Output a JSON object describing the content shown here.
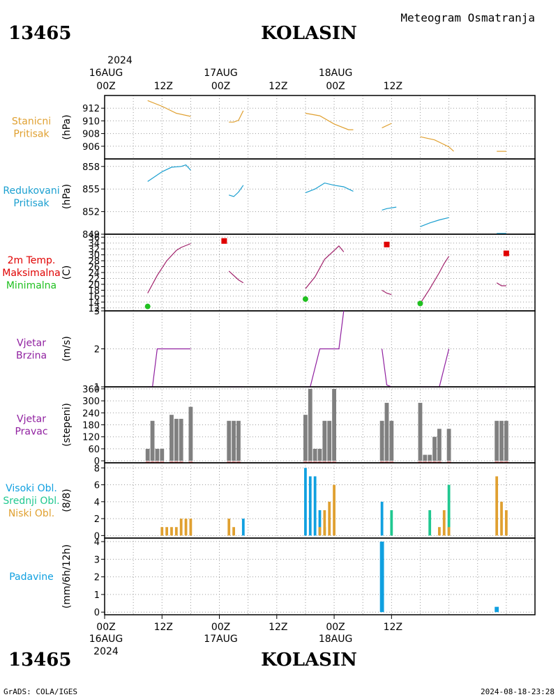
{
  "header": {
    "station_id": "13465",
    "station_name": "KOLASIN",
    "subtitle": "Meteogram Osmatranja"
  },
  "footer": {
    "station_id": "13465",
    "station_name": "KOLASIN",
    "credit": "GrADS: COLA/IGES",
    "timestamp": "2024-08-18-23:28"
  },
  "time_axis": {
    "year": "2024",
    "days": [
      "16AUG",
      "17AUG",
      "18AUG"
    ],
    "top_hour_labels": [
      "00Z",
      "12Z",
      "00Z",
      "12Z",
      "00Z",
      "12Z"
    ],
    "bottom_hour_labels": [
      "00Z",
      "12Z",
      "00Z",
      "12Z",
      "00Z",
      "12Z"
    ]
  },
  "colors": {
    "pressure": "#e0a030",
    "reduced": "#1a9fd0",
    "temp": "#a0206a",
    "max": "#e00000",
    "min": "#20c020",
    "wind": "#9020a0",
    "winddir": "#808080",
    "high_cloud": "#10a0e0",
    "mid_cloud": "#20c890",
    "low_cloud": "#e0a030",
    "precip": "#10a0e0"
  },
  "chart_data": [
    {
      "type": "line",
      "id": "stanicni",
      "labels": [
        "Stanicni",
        "Pritisak"
      ],
      "label_colors": [
        "#e0a030",
        "#e0a030"
      ],
      "unit": "(hPa)",
      "ylim": [
        904,
        914
      ],
      "ticks": [
        906,
        908,
        910,
        912
      ],
      "segments": [
        [
          [
            9,
            913.2
          ],
          [
            12,
            912.3
          ],
          [
            15,
            911.2
          ],
          [
            18,
            910.7
          ]
        ],
        [
          [
            26,
            909.8
          ],
          [
            27,
            909.8
          ],
          [
            28,
            910.1
          ],
          [
            29,
            911.6
          ]
        ],
        [
          [
            42,
            911.2
          ],
          [
            45,
            910.8
          ],
          [
            48,
            909.5
          ],
          [
            51,
            908.6
          ],
          [
            52,
            908.6
          ]
        ],
        [
          [
            58,
            908.9
          ],
          [
            60,
            909.6
          ]
        ],
        [
          [
            66,
            907.5
          ],
          [
            69,
            907
          ],
          [
            72,
            905.9
          ],
          [
            73,
            905.2
          ]
        ],
        [
          [
            82,
            905.2
          ],
          [
            84,
            905.2
          ]
        ]
      ]
    },
    {
      "type": "line",
      "id": "redukovani",
      "labels": [
        "Redukovani",
        "Pritisak"
      ],
      "label_colors": [
        "#1a9fd0",
        "#1a9fd0"
      ],
      "unit": "(hPa)",
      "ylim": [
        849,
        859
      ],
      "ticks": [
        849,
        852,
        855,
        858
      ],
      "segments": [
        [
          [
            9,
            856
          ],
          [
            12,
            857.3
          ],
          [
            14,
            857.9
          ],
          [
            16,
            858
          ],
          [
            17,
            858.2
          ],
          [
            18,
            857.5
          ]
        ],
        [
          [
            26,
            854.2
          ],
          [
            27,
            854
          ],
          [
            28,
            854.6
          ],
          [
            29,
            855.5
          ]
        ],
        [
          [
            42,
            854.5
          ],
          [
            44,
            855
          ],
          [
            46,
            855.8
          ],
          [
            48,
            855.5
          ],
          [
            50,
            855.3
          ],
          [
            52,
            854.7
          ]
        ],
        [
          [
            58,
            852.2
          ],
          [
            59,
            852.4
          ],
          [
            61,
            852.6
          ]
        ],
        [
          [
            66,
            850
          ],
          [
            68,
            850.5
          ],
          [
            70,
            850.9
          ],
          [
            72,
            851.2
          ]
        ],
        [
          [
            82,
            849.1
          ],
          [
            84,
            849.1
          ]
        ]
      ]
    },
    {
      "type": "line",
      "id": "temperatura",
      "labels": [
        "2m Temp.",
        "Maksimalna",
        "Minimalna"
      ],
      "label_colors": [
        "#e00000",
        "#e00000",
        "#20c020"
      ],
      "unit": "(C)",
      "ylim": [
        11,
        37
      ],
      "ticks": [
        12,
        14,
        16,
        18,
        20,
        22,
        24,
        26,
        28,
        30,
        32,
        34,
        36
      ],
      "segments": [
        [
          [
            9,
            17
          ],
          [
            11,
            23
          ],
          [
            13,
            28
          ],
          [
            15,
            31.5
          ],
          [
            16,
            32.5
          ],
          [
            18,
            33.8
          ]
        ],
        [
          [
            26,
            24.5
          ],
          [
            28,
            21.5
          ],
          [
            29,
            20.5
          ]
        ],
        [
          [
            42,
            18.5
          ],
          [
            44,
            22.5
          ],
          [
            46,
            28.5
          ],
          [
            48,
            31.5
          ],
          [
            49,
            33
          ],
          [
            50,
            31
          ]
        ],
        [
          [
            58,
            18
          ],
          [
            59,
            17
          ],
          [
            60,
            16.5
          ]
        ],
        [
          [
            66,
            13.5
          ],
          [
            68,
            18.5
          ],
          [
            70,
            24
          ],
          [
            71,
            27
          ],
          [
            72,
            29.5
          ]
        ],
        [
          [
            82,
            20.5
          ],
          [
            83,
            19.5
          ],
          [
            84,
            19.5
          ]
        ]
      ],
      "max_points": [
        [
          25,
          34.7
        ],
        [
          59,
          33.5
        ],
        [
          84,
          30.5
        ]
      ],
      "min_points": [
        [
          9,
          12.5
        ],
        [
          42,
          15
        ],
        [
          66,
          13.5
        ]
      ]
    },
    {
      "type": "line",
      "id": "vjetar_brzina",
      "labels": [
        "Vjetar",
        "Brzina"
      ],
      "label_colors": [
        "#9020a0",
        "#9020a0"
      ],
      "unit": "(m/s)",
      "ylim": [
        1,
        3
      ],
      "ticks": [
        1,
        2,
        3
      ],
      "segments": [
        [
          [
            9,
            1
          ],
          [
            10,
            1
          ],
          [
            11,
            2
          ],
          [
            12,
            2
          ],
          [
            15,
            2
          ],
          [
            17,
            2
          ],
          [
            18,
            2
          ]
        ],
        [
          [
            26,
            1
          ],
          [
            29,
            1
          ]
        ],
        [
          [
            42,
            1
          ],
          [
            43,
            1
          ],
          [
            45,
            2
          ],
          [
            48,
            2
          ],
          [
            49,
            2
          ],
          [
            50,
            3
          ]
        ],
        [
          [
            58,
            2
          ],
          [
            59,
            1.05
          ],
          [
            60,
            1
          ]
        ],
        [
          [
            66,
            1
          ],
          [
            69,
            1
          ],
          [
            70,
            1
          ],
          [
            72,
            2
          ]
        ],
        [
          [
            82,
            1
          ],
          [
            84,
            1
          ]
        ]
      ]
    },
    {
      "type": "bar",
      "id": "vjetar_pravac",
      "labels": [
        "Vjetar",
        "Pravac"
      ],
      "label_colors": [
        "#9020a0",
        "#9020a0"
      ],
      "unit": "(stepeni)",
      "ylim": [
        -10,
        370
      ],
      "ticks": [
        0,
        60,
        120,
        180,
        240,
        300,
        360
      ],
      "x": [
        9,
        10,
        11,
        12,
        14,
        15,
        16,
        18,
        26,
        27,
        28,
        42,
        43,
        44,
        45,
        46,
        47,
        48,
        58,
        59,
        60,
        66,
        67,
        68,
        69,
        70,
        72,
        82,
        83,
        84
      ],
      "values": [
        60,
        200,
        60,
        60,
        230,
        210,
        210,
        270,
        200,
        200,
        200,
        230,
        360,
        60,
        60,
        200,
        200,
        360,
        200,
        290,
        200,
        290,
        30,
        30,
        120,
        160,
        160,
        200,
        200,
        200
      ]
    },
    {
      "type": "bar",
      "id": "oblaci",
      "labels": [
        "Visoki Obl.",
        "Srednji Obl.",
        "Niski Obl."
      ],
      "label_colors": [
        "#10a0e0",
        "#20c890",
        "#e0a030"
      ],
      "unit": "(8/8)",
      "ylim": [
        -0.3,
        8.6
      ],
      "ticks": [
        0,
        2,
        4,
        6,
        8
      ],
      "series": [
        {
          "name": "Visoki Obl.",
          "x": [
            29,
            42,
            43,
            44,
            45,
            58
          ],
          "values": [
            2,
            8,
            7,
            7,
            3,
            4
          ]
        },
        {
          "name": "Srednji Obl.",
          "x": [
            46,
            60,
            68,
            72
          ],
          "values": [
            1,
            3,
            3,
            6
          ]
        },
        {
          "name": "Niski Obl.",
          "x": [
            12,
            13,
            14,
            15,
            16,
            17,
            18,
            26,
            27,
            45,
            46,
            47,
            48,
            70,
            71,
            72,
            82,
            83,
            84
          ],
          "values": [
            1,
            1,
            1,
            1,
            2,
            2,
            2,
            2,
            1,
            1,
            3,
            4,
            6,
            1,
            3,
            1,
            7,
            4,
            3
          ]
        }
      ]
    },
    {
      "type": "bar",
      "id": "padavine",
      "labels": [
        "Padavine"
      ],
      "label_colors": [
        "#10a0e0"
      ],
      "unit": "(mm/6h/12h)",
      "ylim": [
        -0.15,
        4.2
      ],
      "ticks": [
        0,
        1,
        2,
        3,
        4
      ],
      "x": [
        58,
        82
      ],
      "values": [
        4,
        0.3
      ]
    }
  ]
}
